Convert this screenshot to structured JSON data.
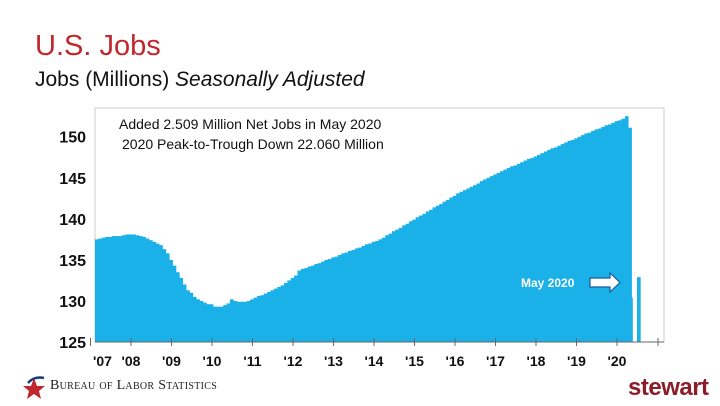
{
  "header": {
    "title": "U.S. Jobs",
    "subtitle_main": "Jobs (Millions)",
    "subtitle_italic": "Seasonally Adjusted"
  },
  "chart_data": {
    "type": "bar",
    "title": "U.S. Jobs",
    "ylabel": "Jobs (Millions) Seasonally Adjusted",
    "ylim": [
      125,
      153.5
    ],
    "yticks": [
      125,
      130,
      135,
      140,
      145,
      150
    ],
    "xtick_labels": [
      "'07",
      "'08",
      "'09",
      "'10",
      "'11",
      "'12",
      "'13",
      "'14",
      "'15",
      "'16",
      "'17",
      "'18",
      "'19",
      "'20"
    ],
    "x_start": "2007-01",
    "frequency": "monthly",
    "color": "#1ab0e8",
    "annotations": [
      "Added 2.509 Million Net Jobs in May 2020",
      "2020 Peak-to-Trough Down 22.060 Million"
    ],
    "callout": "May 2020",
    "values": [
      137.5,
      137.6,
      137.7,
      137.8,
      137.8,
      137.9,
      137.9,
      137.9,
      138.0,
      138.1,
      138.1,
      138.1,
      138.0,
      137.9,
      137.8,
      137.6,
      137.4,
      137.2,
      137.0,
      136.8,
      136.3,
      135.8,
      135.0,
      134.3,
      133.5,
      132.8,
      132.0,
      131.3,
      131.0,
      130.5,
      130.2,
      130.0,
      129.8,
      129.6,
      129.6,
      129.3,
      129.3,
      129.3,
      129.5,
      129.7,
      130.2,
      130.0,
      129.9,
      129.9,
      129.9,
      130.0,
      130.2,
      130.4,
      130.6,
      130.7,
      130.9,
      131.1,
      131.3,
      131.5,
      131.7,
      131.9,
      132.2,
      132.5,
      132.8,
      133.1,
      133.7,
      133.9,
      134.0,
      134.2,
      134.3,
      134.5,
      134.6,
      134.8,
      135.0,
      135.1,
      135.3,
      135.4,
      135.6,
      135.8,
      135.9,
      136.1,
      136.2,
      136.4,
      136.5,
      136.7,
      136.9,
      137.0,
      137.2,
      137.3,
      137.5,
      137.7,
      138.0,
      138.2,
      138.5,
      138.7,
      138.9,
      139.2,
      139.4,
      139.7,
      139.9,
      140.2,
      140.4,
      140.6,
      140.9,
      141.1,
      141.4,
      141.6,
      141.8,
      142.1,
      142.3,
      142.6,
      142.8,
      143.1,
      143.3,
      143.5,
      143.7,
      143.9,
      144.1,
      144.3,
      144.6,
      144.8,
      145.0,
      145.2,
      145.4,
      145.6,
      145.8,
      146.0,
      146.2,
      146.4,
      146.5,
      146.7,
      146.9,
      147.1,
      147.3,
      147.4,
      147.6,
      147.8,
      148.0,
      148.2,
      148.4,
      148.6,
      148.7,
      148.9,
      149.1,
      149.3,
      149.5,
      149.6,
      149.8,
      150.0,
      150.2,
      150.4,
      150.5,
      150.7,
      150.9,
      151.0,
      151.2,
      151.4,
      151.5,
      151.7,
      151.9,
      152.0,
      152.2,
      152.5,
      151.1,
      130.4,
      132.9
    ]
  },
  "footer": {
    "source_logo": "Bureau of Labor Statistics",
    "brand_logo": "stewart"
  }
}
